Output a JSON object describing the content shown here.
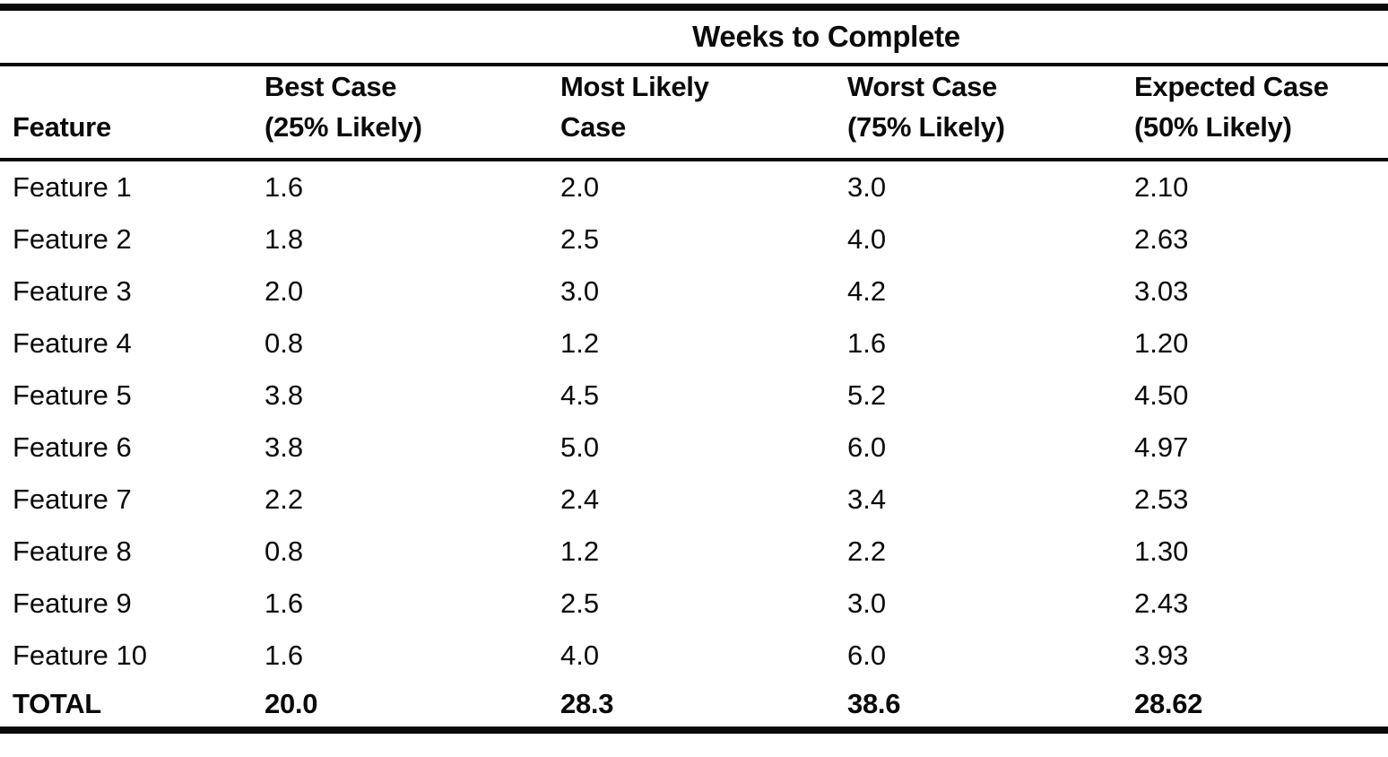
{
  "page": {
    "background": "#ffffff",
    "ink": "#0a0a0a"
  },
  "table": {
    "spanner_title": "Weeks to Complete",
    "feature_header": "Feature",
    "value_columns": [
      {
        "line1": "Best Case",
        "line2": "(25% Likely)"
      },
      {
        "line1": "Most Likely",
        "line2": "Case"
      },
      {
        "line1": "Worst Case",
        "line2": "(75% Likely)"
      },
      {
        "line1": "Expected Case",
        "line2": "(50% Likely)"
      }
    ],
    "rows": [
      {
        "feature": "Feature 1",
        "best": "1.6",
        "likely": "2.0",
        "worst": "3.0",
        "expected": "2.10"
      },
      {
        "feature": "Feature 2",
        "best": "1.8",
        "likely": "2.5",
        "worst": "4.0",
        "expected": "2.63"
      },
      {
        "feature": "Feature 3",
        "best": "2.0",
        "likely": "3.0",
        "worst": "4.2",
        "expected": "3.03"
      },
      {
        "feature": "Feature 4",
        "best": "0.8",
        "likely": "1.2",
        "worst": "1.6",
        "expected": "1.20"
      },
      {
        "feature": "Feature 5",
        "best": "3.8",
        "likely": "4.5",
        "worst": "5.2",
        "expected": "4.50"
      },
      {
        "feature": "Feature 6",
        "best": "3.8",
        "likely": "5.0",
        "worst": "6.0",
        "expected": "4.97"
      },
      {
        "feature": "Feature 7",
        "best": "2.2",
        "likely": "2.4",
        "worst": "3.4",
        "expected": "2.53"
      },
      {
        "feature": "Feature 8",
        "best": "0.8",
        "likely": "1.2",
        "worst": "2.2",
        "expected": "1.30"
      },
      {
        "feature": "Feature 9",
        "best": "1.6",
        "likely": "2.5",
        "worst": "3.0",
        "expected": "2.43"
      },
      {
        "feature": "Feature 10",
        "best": "1.6",
        "likely": "4.0",
        "worst": "6.0",
        "expected": "3.93"
      }
    ],
    "total": {
      "feature": "TOTAL",
      "best": "20.0",
      "likely": "28.3",
      "worst": "38.6",
      "expected": "28.62"
    }
  },
  "chart_data": {
    "type": "table",
    "title": "Weeks to Complete",
    "columns": [
      "Feature",
      "Best Case (25% Likely)",
      "Most Likely Case",
      "Worst Case (75% Likely)",
      "Expected Case (50% Likely)"
    ],
    "rows": [
      [
        "Feature 1",
        1.6,
        2.0,
        3.0,
        2.1
      ],
      [
        "Feature 2",
        1.8,
        2.5,
        4.0,
        2.63
      ],
      [
        "Feature 3",
        2.0,
        3.0,
        4.2,
        3.03
      ],
      [
        "Feature 4",
        0.8,
        1.2,
        1.6,
        1.2
      ],
      [
        "Feature 5",
        3.8,
        4.5,
        5.2,
        4.5
      ],
      [
        "Feature 6",
        3.8,
        5.0,
        6.0,
        4.97
      ],
      [
        "Feature 7",
        2.2,
        2.4,
        3.4,
        2.53
      ],
      [
        "Feature 8",
        0.8,
        1.2,
        2.2,
        1.3
      ],
      [
        "Feature 9",
        1.6,
        2.5,
        3.0,
        2.43
      ],
      [
        "Feature 10",
        1.6,
        4.0,
        6.0,
        3.93
      ]
    ],
    "totals": [
      "TOTAL",
      20.0,
      28.3,
      38.6,
      28.62
    ]
  }
}
